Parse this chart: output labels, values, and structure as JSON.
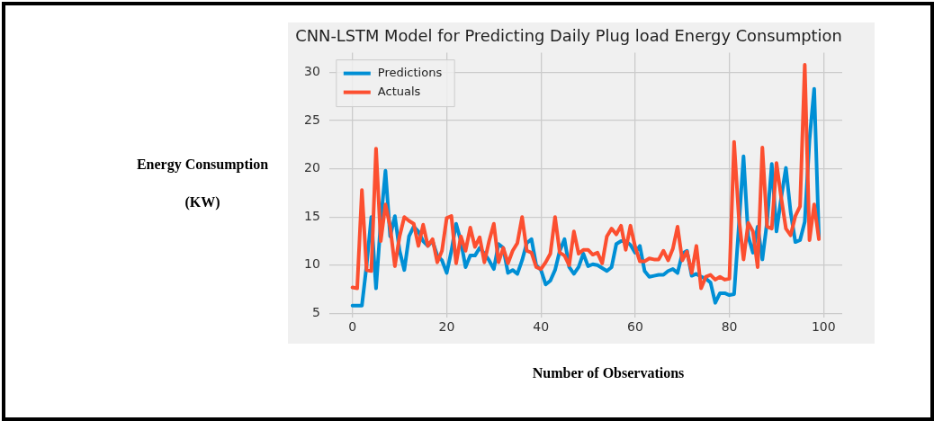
{
  "chart_data": {
    "type": "line",
    "title": "CNN-LSTM Model for Predicting Daily Plug load Energy Consumption",
    "xlabel": "Number of Observations",
    "ylabel": "Energy Consumption (KW)",
    "x": [
      0,
      1,
      2,
      3,
      4,
      5,
      6,
      7,
      8,
      9,
      10,
      11,
      12,
      13,
      14,
      15,
      16,
      17,
      18,
      19,
      20,
      21,
      22,
      23,
      24,
      25,
      26,
      27,
      28,
      29,
      30,
      31,
      32,
      33,
      34,
      35,
      36,
      37,
      38,
      39,
      40,
      41,
      42,
      43,
      44,
      45,
      46,
      47,
      48,
      49,
      50,
      51,
      52,
      53,
      54,
      55,
      56,
      57,
      58,
      59,
      60,
      61,
      62,
      63,
      64,
      65,
      66,
      67,
      68,
      69,
      70,
      71,
      72,
      73,
      74,
      75,
      76,
      77,
      78,
      79,
      80,
      81,
      82,
      83,
      84,
      85,
      86,
      87,
      88,
      89,
      90,
      91,
      92,
      93,
      94,
      95,
      96,
      97,
      98,
      99
    ],
    "series": [
      {
        "name": "Predictions",
        "color": "#008fd5",
        "values": [
          5.8,
          5.8,
          5.8,
          10,
          15,
          7.6,
          14.5,
          19.8,
          13,
          15.1,
          11.5,
          9.5,
          13,
          14,
          13.5,
          12.5,
          12,
          12.5,
          11,
          10.5,
          9.2,
          11.5,
          14.3,
          12.5,
          9.8,
          11,
          11,
          11.8,
          11.2,
          10.5,
          9.6,
          12.2,
          11.8,
          9.2,
          9.5,
          9.1,
          10.5,
          12.3,
          12.7,
          10,
          9.5,
          8,
          8.4,
          9.5,
          11.5,
          12.7,
          9.8,
          9.1,
          9.8,
          11.2,
          9.9,
          10.1,
          10,
          9.7,
          9.4,
          9.8,
          12.2,
          12.5,
          12.5,
          12.1,
          11.3,
          12,
          9.4,
          8.8,
          8.9,
          9,
          9,
          9.4,
          9.6,
          9.2,
          11.2,
          11.5,
          8.9,
          9.1,
          8.8,
          8.6,
          8.2,
          6.1,
          7.1,
          7.1,
          6.9,
          7,
          14,
          21.3,
          13,
          11.3,
          14,
          10.6,
          14.5,
          20.5,
          13.5,
          17,
          20.1,
          15.5,
          12.4,
          12.6,
          14.5,
          23,
          28.3,
          12.9
        ]
      },
      {
        "name": "Actuals",
        "color": "#fc4f30",
        "values": [
          7.7,
          7.6,
          17.8,
          9.5,
          9.4,
          22.1,
          12.5,
          16.3,
          14,
          9.9,
          13,
          15,
          14.6,
          14.3,
          12,
          14.2,
          12,
          12.7,
          10.3,
          11.5,
          14.9,
          15.1,
          10.2,
          13,
          11.5,
          13.9,
          11.9,
          12.9,
          10.3,
          12.5,
          14.3,
          10.3,
          11.8,
          10.2,
          11.5,
          12.3,
          15,
          11.5,
          11.3,
          9.8,
          9.6,
          10.3,
          11.2,
          15,
          11.3,
          11,
          10,
          13.5,
          11.2,
          11.6,
          11.6,
          11.1,
          11.3,
          10.2,
          13,
          13.8,
          13.2,
          14.1,
          11.6,
          14.1,
          11.9,
          10.4,
          10.4,
          10.7,
          10.6,
          10.6,
          11.5,
          10.5,
          11.7,
          14,
          10.5,
          11.4,
          9.2,
          12,
          7.6,
          8.8,
          9,
          8.5,
          8.8,
          8.5,
          8.6,
          22.8,
          15,
          10.6,
          14.4,
          13.5,
          9.8,
          22.2,
          14,
          13.8,
          20.6,
          17,
          13.8,
          13.1,
          15.1,
          16.1,
          30.8,
          12.6,
          16.3,
          12.7
        ]
      }
    ],
    "xlim": [
      -4.95,
      103.95
    ],
    "xticks": [
      0,
      20,
      40,
      60,
      80,
      100
    ],
    "ylim": [
      4.55,
      32.05
    ],
    "yticks": [
      5,
      10,
      15,
      20,
      25,
      30
    ],
    "grid": true,
    "legend": "top left",
    "marker": "none",
    "line_style": "solid"
  }
}
